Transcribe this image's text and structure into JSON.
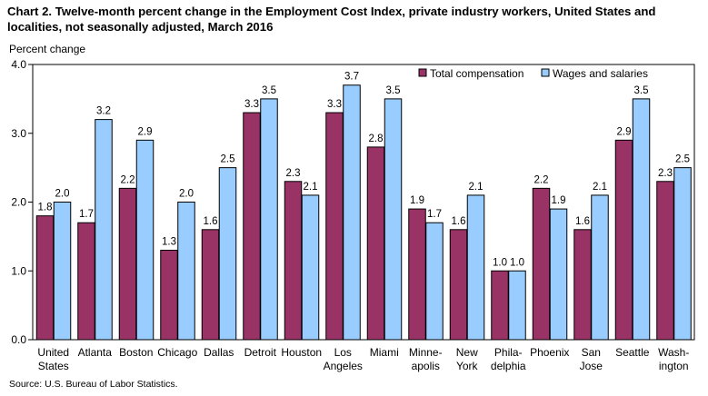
{
  "header": {
    "title_line1": "Chart 2. Twelve-month percent change in the Employment Cost Index, private industry workers, United States and",
    "title_line2": "localities, not seasonally adjusted, March 2016"
  },
  "footer": {
    "source": "Source: U.S. Bureau of Labor Statistics."
  },
  "chart_data": {
    "type": "bar",
    "title": "Chart 2. Twelve-month percent change in the Employment Cost Index, private industry workers, United States and localities, not seasonally adjusted, March 2016",
    "ylabel": "Percent change",
    "xlabel": "",
    "ylim": [
      0.0,
      4.0
    ],
    "yticks": [
      "0.0",
      "1.0",
      "2.0",
      "3.0",
      "4.0"
    ],
    "grid": false,
    "legend_position": "top-right",
    "categories": [
      [
        "United",
        "States"
      ],
      [
        "Atlanta"
      ],
      [
        "Boston"
      ],
      [
        "Chicago"
      ],
      [
        "Dallas"
      ],
      [
        "Detroit"
      ],
      [
        "Houston"
      ],
      [
        "Los",
        "Angeles"
      ],
      [
        "Miami"
      ],
      [
        "Minne-",
        "apolis"
      ],
      [
        "New",
        "York"
      ],
      [
        "Phila-",
        "delphia"
      ],
      [
        "Phoenix"
      ],
      [
        "San",
        "Jose"
      ],
      [
        "Seattle"
      ],
      [
        "Wash-",
        "ington"
      ]
    ],
    "series": [
      {
        "name": "Total compensation",
        "color": "#993366",
        "values": [
          1.8,
          1.7,
          2.2,
          1.3,
          1.6,
          3.3,
          2.3,
          3.3,
          2.8,
          1.9,
          1.6,
          1.0,
          2.2,
          1.6,
          2.9,
          2.3
        ],
        "labels": [
          "1.8",
          "1.7",
          "2.2",
          "1.3",
          "1.6",
          "3.3",
          "2.3",
          "3.3",
          "2.8",
          "1.9",
          "1.6",
          "1.0",
          "2.2",
          "1.6",
          "2.9",
          "2.3"
        ]
      },
      {
        "name": "Wages and salaries",
        "color": "#99CCFF",
        "values": [
          2.0,
          3.2,
          2.9,
          2.0,
          2.5,
          3.5,
          2.1,
          3.7,
          3.5,
          1.7,
          2.1,
          1.0,
          1.9,
          2.1,
          3.5,
          2.5
        ],
        "labels": [
          "2.0",
          "3.2",
          "2.9",
          "2.0",
          "2.5",
          "3.5",
          "2.1",
          "3.7",
          "3.5",
          "1.7",
          "2.1",
          "1.0",
          "1.9",
          "2.1",
          "3.5",
          "2.5"
        ]
      }
    ]
  }
}
